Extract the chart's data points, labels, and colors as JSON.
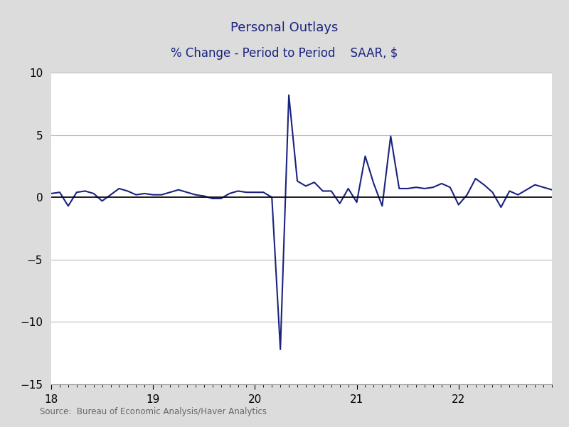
{
  "title_line1": "Personal Outlays",
  "title_line2": "% Change - Period to Period    SAAR, $",
  "source": "Source:  Bureau of Economic Analysis/Haver Analytics",
  "line_color": "#1a237e",
  "background_color": "#dcdcdc",
  "plot_background_color": "#ffffff",
  "grid_color": "#bbbbbb",
  "ylim": [
    -15,
    10
  ],
  "xlim_start": 18.0,
  "xlim_end": 22.0,
  "yticks": [
    -15,
    -10,
    -5,
    0,
    5,
    10
  ],
  "xticks": [
    18,
    19,
    20,
    21,
    22
  ],
  "zero_line_color": "#000000",
  "values": [
    0.3,
    0.4,
    -0.7,
    0.4,
    0.5,
    0.3,
    -0.3,
    0.2,
    0.7,
    0.5,
    0.2,
    0.3,
    0.2,
    0.2,
    0.4,
    0.6,
    0.4,
    0.2,
    0.1,
    -0.1,
    -0.1,
    0.3,
    0.5,
    0.4,
    0.4,
    0.4,
    0.0,
    -12.2,
    8.2,
    1.3,
    0.9,
    1.2,
    0.5,
    0.5,
    -0.5,
    0.7,
    -0.4,
    3.3,
    1.1,
    -0.7,
    4.9,
    0.7,
    0.7,
    0.8,
    0.7,
    0.8,
    1.1,
    0.8,
    -0.6,
    0.2,
    1.5,
    1.0,
    0.4,
    -0.8,
    0.5,
    0.2,
    0.6,
    1.0,
    0.8,
    0.6
  ],
  "start_year": 2018,
  "start_month": 1,
  "title_fontsize": 13,
  "subtitle_fontsize": 12,
  "tick_fontsize": 11,
  "source_fontsize": 8.5
}
